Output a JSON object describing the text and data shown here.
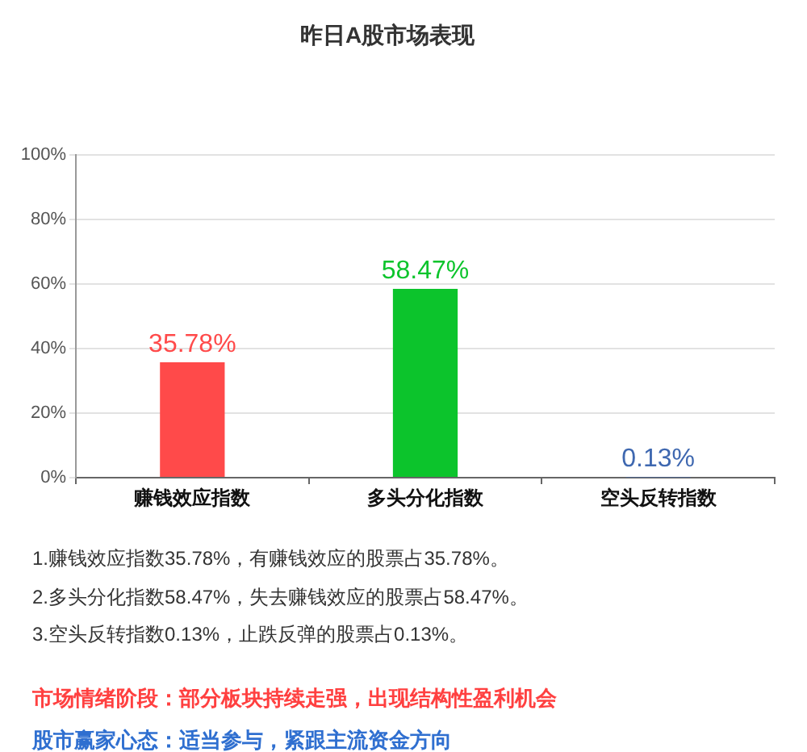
{
  "chart_data": {
    "type": "bar",
    "title": "昨日A股市场表现",
    "categories": [
      "赚钱效应指数",
      "多头分化指数",
      "空头反转指数"
    ],
    "values": [
      35.78,
      58.47,
      0.13
    ],
    "colors": [
      "#ff4a4a",
      "#0cc42c",
      "#3f68b0"
    ],
    "value_labels": [
      "35.78%",
      "58.47%",
      "0.13%"
    ],
    "ylim": [
      0,
      100
    ],
    "yticks": [
      {
        "value": 0,
        "label": "0%"
      },
      {
        "value": 20,
        "label": "20%"
      },
      {
        "value": 40,
        "label": "40%"
      },
      {
        "value": 60,
        "label": "60%"
      },
      {
        "value": 80,
        "label": "80%"
      },
      {
        "value": 100,
        "label": "100%"
      }
    ],
    "grid": "y",
    "annotations": [
      "1.赚钱效应指数35.78%，有赚钱效应的股票占35.78%。",
      "2.多头分化指数58.47%，失去赚钱效应的股票占58.47%。",
      "3.空头反转指数0.13%，止跌反弹的股票占0.13%。",
      "市场情绪阶段：部分板块持续走强，出现结构性盈利机会",
      "股市赢家心态：适当参与，紧跟主流资金方向"
    ]
  }
}
